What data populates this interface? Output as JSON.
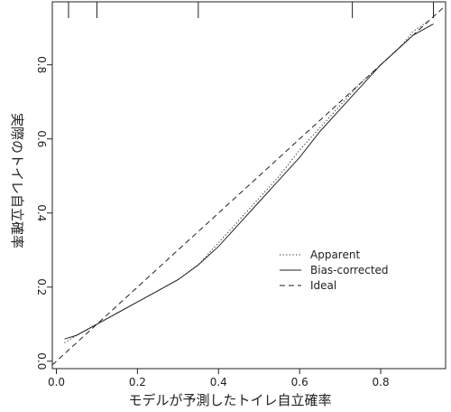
{
  "chart_data": {
    "type": "line",
    "xlabel": "モデルが予測したトイレ自立確率",
    "ylabel": "実際のトイレ自立確率",
    "xlim": [
      -0.01,
      0.96
    ],
    "ylim": [
      -0.02,
      0.97
    ],
    "x_ticks": [
      "0.0",
      "0.2",
      "0.4",
      "0.6",
      "0.8"
    ],
    "y_ticks": [
      "0.0",
      "0.2",
      "0.4",
      "0.6",
      "0.8"
    ],
    "rug_x": [
      0.03,
      0.1,
      0.35,
      0.73,
      0.93
    ],
    "legend_position": "center-right",
    "series": [
      {
        "name": "Apparent",
        "dash": "dotted",
        "x": [
          0.02,
          0.05,
          0.1,
          0.15,
          0.2,
          0.25,
          0.3,
          0.35,
          0.4,
          0.45,
          0.5,
          0.55,
          0.6,
          0.65,
          0.7,
          0.75,
          0.8,
          0.85,
          0.88,
          0.92
        ],
        "y": [
          0.05,
          0.07,
          0.1,
          0.13,
          0.16,
          0.19,
          0.22,
          0.26,
          0.32,
          0.38,
          0.44,
          0.5,
          0.57,
          0.63,
          0.69,
          0.75,
          0.8,
          0.85,
          0.89,
          0.92
        ]
      },
      {
        "name": "Bias-corrected",
        "dash": "solid",
        "x": [
          0.02,
          0.05,
          0.1,
          0.15,
          0.2,
          0.25,
          0.3,
          0.35,
          0.4,
          0.45,
          0.5,
          0.55,
          0.6,
          0.65,
          0.7,
          0.75,
          0.8,
          0.85,
          0.88,
          0.93
        ],
        "y": [
          0.06,
          0.07,
          0.1,
          0.13,
          0.16,
          0.19,
          0.22,
          0.26,
          0.31,
          0.37,
          0.43,
          0.49,
          0.55,
          0.62,
          0.68,
          0.74,
          0.8,
          0.85,
          0.88,
          0.91
        ]
      },
      {
        "name": "Ideal",
        "dash": "dashed",
        "x": [
          -0.01,
          0.96
        ],
        "y": [
          -0.01,
          0.96
        ]
      }
    ]
  }
}
